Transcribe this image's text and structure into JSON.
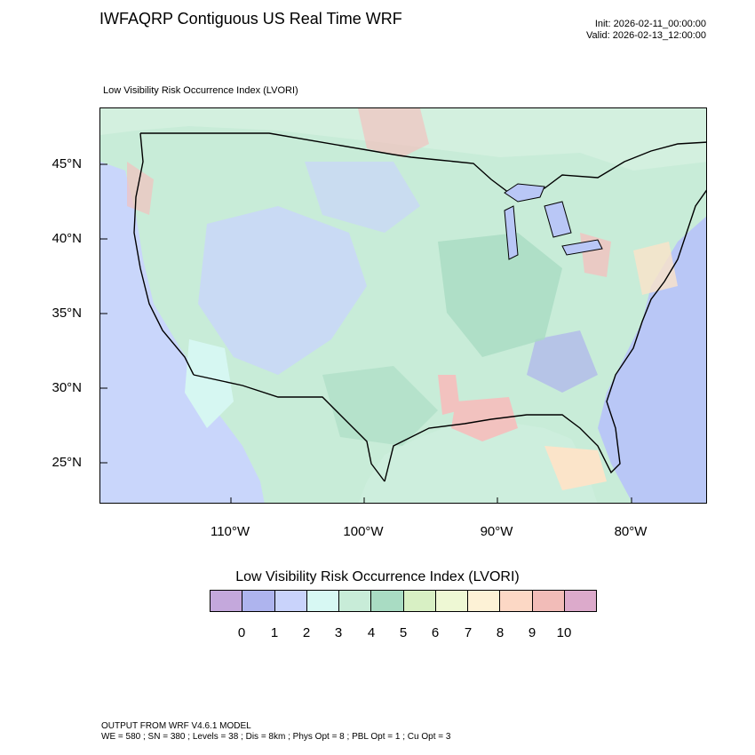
{
  "header": {
    "title": "IWFAQRP Contiguous US Real Time WRF",
    "init": "Init: 2026-02-11_00:00:00",
    "valid": "Valid: 2026-02-13_12:00:00"
  },
  "map": {
    "subtitle": "Low Visibility Risk Occurrence Index   (LVORI)",
    "lat_labels": [
      "45°N",
      "40°N",
      "35°N",
      "30°N",
      "25°N"
    ],
    "lon_labels": [
      "110°W",
      "100°W",
      "90°W",
      "80°W"
    ],
    "colors": {
      "land_base": "#c8ecd8",
      "water": "#b9c7f6",
      "low_vis": "#c9d6fb",
      "high_risk": "#f2c2bf",
      "mid_risk": "#fbe4c9",
      "cyan": "#d6f7f2",
      "green": "#a9dcc3"
    }
  },
  "legend": {
    "title": "Low Visibility Risk Occurrence Index  (LVORI)",
    "colors": [
      "#c4a8dc",
      "#aeb4ee",
      "#c9d3fb",
      "#d7f8f3",
      "#c8ecd8",
      "#a9dcc3",
      "#d8f0c4",
      "#eef8d4",
      "#fdf2d6",
      "#fcd8c5",
      "#f2bcb8",
      "#dcaacb"
    ],
    "ticks": [
      "0",
      "1",
      "2",
      "3",
      "4",
      "5",
      "6",
      "7",
      "8",
      "9",
      "10"
    ]
  },
  "footer": {
    "line1": "OUTPUT FROM WRF V4.6.1 MODEL",
    "line2": "WE = 580 ; SN = 380 ; Levels = 38 ; Dis = 8km ; Phys Opt = 8 ; PBL Opt = 1 ; Cu Opt = 3"
  }
}
